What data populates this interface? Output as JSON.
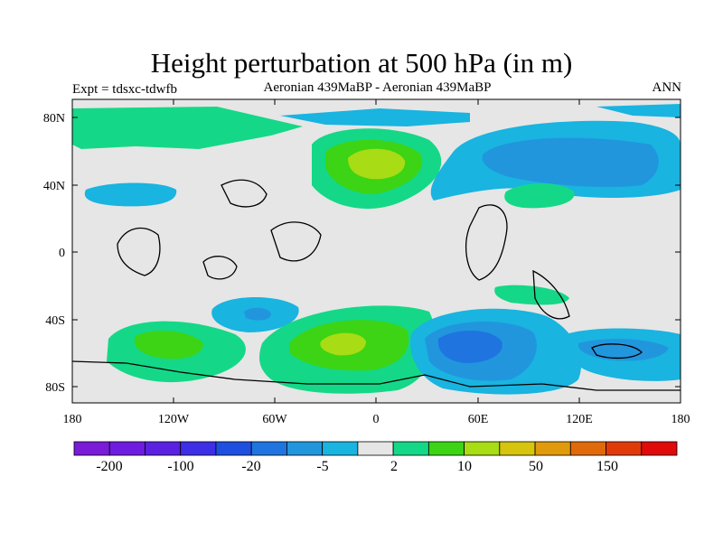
{
  "title": "Height perturbation at 500 hPa (in m)",
  "left_subtitle": "Expt = tdsxc-tdwfb",
  "center_subtitle": "Aeronian 439MaBP - Aeronian 439MaBP",
  "right_subtitle": "ANN",
  "map": {
    "projection": "cylindrical-equidistant",
    "lon_range": [
      -180,
      180
    ],
    "lat_range": [
      -90,
      90
    ],
    "y_tick_labels": [
      "80N",
      "40N",
      "0",
      "40S",
      "80S"
    ],
    "x_tick_labels": [
      "180",
      "120W",
      "60W",
      "0",
      "60E",
      "120E",
      "180"
    ],
    "background_color": "#e6e6e6"
  },
  "colorbar": {
    "colors": [
      "#7a1bd8",
      "#6d1ce0",
      "#5a21e0",
      "#3d2fe6",
      "#1e4fe0",
      "#1f74e0",
      "#2196dd",
      "#19b4e0",
      "#e6e6e6",
      "#14d887",
      "#3cd414",
      "#a8dc14",
      "#d6c40e",
      "#e09a0c",
      "#e06a0a",
      "#e03a0a",
      "#e00a0a"
    ],
    "labels": [
      "-200",
      "-100",
      "-20",
      "-5",
      "2",
      "10",
      "50",
      "150"
    ]
  }
}
